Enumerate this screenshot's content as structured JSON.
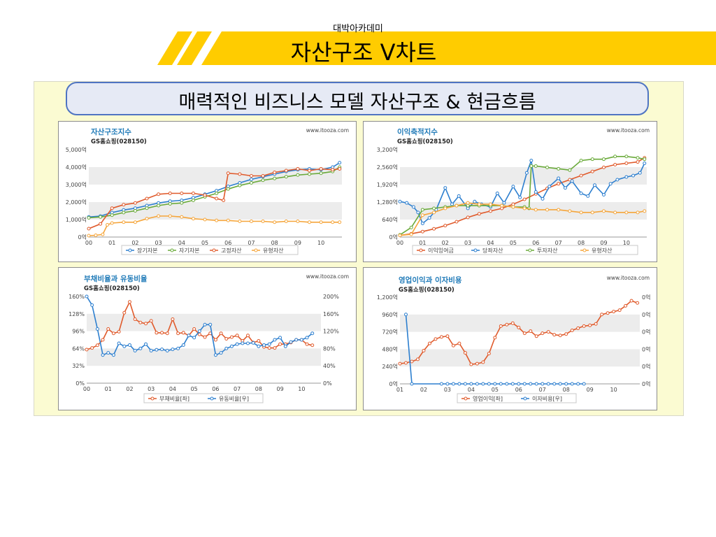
{
  "slide": {
    "subtitle": "대박아카데미",
    "title": "자산구조 V차트",
    "headline": "매력적인 비즈니스 모델 자산구조 & 현금흐름"
  },
  "colors": {
    "banner_yellow": "#ffcc00",
    "frame_bg": "#fbfbd2",
    "headline_border": "#4f74c2",
    "red": "#e05a2b",
    "blue": "#2d7fcf",
    "green": "#6aaa3a",
    "orange": "#f5a53a",
    "title_blue": "#1f7ab8"
  },
  "chart_data": [
    {
      "type": "line",
      "title": "자산구조지수",
      "subtitle": "GS홈쇼핑(028150)",
      "source": "www.itooza.com",
      "x_ticks": [
        "00",
        "01",
        "02",
        "03",
        "04",
        "05",
        "06",
        "07",
        "08",
        "09",
        "10"
      ],
      "x_range": [
        0,
        10.9
      ],
      "ylim": [
        0,
        5000
      ],
      "y_ticks": [
        "0억",
        "1,000억",
        "2,000억",
        "3,000억",
        "4,000억",
        "5,000억"
      ],
      "grid_bands": true,
      "legend_position": "bottom",
      "series": [
        {
          "name": "장기자본",
          "color": "blue",
          "x": [
            0,
            0.5,
            1,
            1.5,
            2,
            2.5,
            3,
            3.5,
            4,
            4.5,
            5,
            5.5,
            6,
            6.5,
            7,
            7.5,
            8,
            8.5,
            9,
            9.5,
            10,
            10.5,
            10.8
          ],
          "values": [
            1150,
            1200,
            1400,
            1550,
            1650,
            1800,
            1950,
            2050,
            2100,
            2250,
            2450,
            2650,
            2900,
            3100,
            3300,
            3450,
            3600,
            3750,
            3850,
            3900,
            3850,
            4000,
            4250
          ]
        },
        {
          "name": "자기자본",
          "color": "green",
          "x": [
            0,
            0.5,
            1,
            1.5,
            2,
            2.5,
            3,
            3.5,
            4,
            4.5,
            5,
            5.5,
            6,
            6.5,
            7,
            7.5,
            8,
            8.5,
            9,
            9.5,
            10,
            10.5,
            10.8
          ],
          "values": [
            1100,
            1150,
            1250,
            1400,
            1500,
            1650,
            1800,
            1900,
            1950,
            2100,
            2300,
            2500,
            2750,
            2950,
            3100,
            3250,
            3350,
            3450,
            3550,
            3600,
            3650,
            3750,
            4000
          ]
        },
        {
          "name": "고정자산",
          "color": "red",
          "x": [
            0,
            0.5,
            1,
            1.5,
            2,
            2.5,
            3,
            3.5,
            4,
            4.5,
            5,
            5.5,
            5.8,
            6,
            6.5,
            7,
            7.5,
            8,
            8.5,
            9,
            9.5,
            10,
            10.5,
            10.8
          ],
          "values": [
            480,
            750,
            1650,
            1850,
            1950,
            2200,
            2450,
            2500,
            2500,
            2500,
            2400,
            2200,
            2100,
            3650,
            3600,
            3500,
            3500,
            3700,
            3800,
            3900,
            3800,
            3900,
            3850,
            3900
          ]
        },
        {
          "name": "유형자산",
          "color": "orange",
          "x": [
            0,
            0.3,
            0.6,
            0.8,
            1,
            1.5,
            2,
            2.5,
            3,
            3.5,
            4,
            4.5,
            5,
            5.5,
            6,
            6.5,
            7,
            7.5,
            8,
            8.5,
            9,
            9.5,
            10,
            10.5,
            10.8
          ],
          "values": [
            80,
            100,
            150,
            700,
            800,
            850,
            850,
            1050,
            1200,
            1200,
            1150,
            1050,
            1000,
            950,
            950,
            900,
            900,
            900,
            850,
            900,
            900,
            850,
            850,
            850,
            850
          ]
        }
      ]
    },
    {
      "type": "line",
      "title": "이익축적지수",
      "subtitle": "GS홈쇼핑(028150)",
      "source": "www.itooza.com",
      "x_ticks": [
        "00",
        "01",
        "02",
        "03",
        "04",
        "05",
        "06",
        "07",
        "08",
        "09",
        "10"
      ],
      "x_range": [
        0,
        10.9
      ],
      "ylim": [
        0,
        3200
      ],
      "y_ticks": [
        "0억",
        "640억",
        "1,280억",
        "1,920억",
        "2,560억",
        "3,200억"
      ],
      "grid_bands": true,
      "legend_position": "bottom",
      "series": [
        {
          "name": "이익잉여금",
          "color": "red",
          "x": [
            0,
            0.5,
            1,
            1.5,
            2,
            2.5,
            3,
            3.5,
            4,
            4.5,
            5,
            5.5,
            6,
            6.5,
            7,
            7.5,
            8,
            8.5,
            9,
            9.5,
            10,
            10.5,
            10.8
          ],
          "values": [
            60,
            120,
            200,
            300,
            420,
            560,
            720,
            850,
            950,
            1050,
            1200,
            1380,
            1580,
            1780,
            1950,
            2100,
            2250,
            2400,
            2550,
            2650,
            2700,
            2750,
            2900
          ]
        },
        {
          "name": "당좌자산",
          "color": "blue",
          "x": [
            0,
            0.3,
            0.6,
            0.8,
            1,
            1.3,
            1.6,
            2,
            2.3,
            2.6,
            3,
            3.3,
            3.6,
            4,
            4.3,
            4.6,
            5,
            5.3,
            5.6,
            5.8,
            6,
            6.3,
            6.6,
            7,
            7.3,
            7.6,
            8,
            8.3,
            8.6,
            9,
            9.3,
            9.6,
            10,
            10.3,
            10.6,
            10.8
          ],
          "values": [
            1300,
            1250,
            1100,
            900,
            500,
            700,
            1000,
            1800,
            1200,
            1500,
            1050,
            1300,
            1200,
            1100,
            1600,
            1250,
            1850,
            1450,
            2350,
            2800,
            1650,
            1400,
            1850,
            2150,
            1800,
            2050,
            1600,
            1500,
            1900,
            1550,
            1950,
            2100,
            2200,
            2250,
            2350,
            2700
          ]
        },
        {
          "name": "투자자산",
          "color": "green",
          "x": [
            0,
            0.5,
            1,
            1.5,
            2,
            2.5,
            3,
            3.5,
            4,
            4.5,
            5,
            5.5,
            5.7,
            5.8,
            6,
            6.5,
            7,
            7.5,
            8,
            8.5,
            9,
            9.5,
            10,
            10.5,
            10.8
          ],
          "values": [
            80,
            350,
            1000,
            1050,
            1100,
            1150,
            1150,
            1150,
            1150,
            1150,
            1100,
            1100,
            1050,
            2600,
            2600,
            2550,
            2500,
            2450,
            2800,
            2850,
            2850,
            2950,
            2950,
            2900,
            2850
          ]
        },
        {
          "name": "유형자산",
          "color": "orange",
          "x": [
            0,
            0.5,
            1,
            1.5,
            2,
            2.5,
            3,
            3.5,
            4,
            4.5,
            5,
            5.5,
            6,
            6.5,
            7,
            7.5,
            8,
            8.5,
            9,
            9.5,
            10,
            10.5,
            10.8
          ],
          "values": [
            60,
            100,
            800,
            900,
            1050,
            1150,
            1250,
            1200,
            1200,
            1150,
            1100,
            1050,
            1000,
            1000,
            1000,
            950,
            900,
            900,
            950,
            900,
            900,
            900,
            950
          ]
        }
      ]
    },
    {
      "type": "line",
      "title": "부채비율과 유동비율",
      "subtitle": "GS홈쇼핑(028150)",
      "source": "www.itooza.com",
      "x_ticks": [
        "00",
        "01",
        "02",
        "03",
        "04",
        "05",
        "06",
        "07",
        "08",
        "09",
        "10"
      ],
      "x_range": [
        0,
        10.9
      ],
      "ylim": [
        0,
        160
      ],
      "y_ticks": [
        "0%",
        "32%",
        "64%",
        "96%",
        "128%",
        "160%"
      ],
      "y2lim": [
        0,
        200
      ],
      "y2_ticks": [
        "0%",
        "40%",
        "80%",
        "120%",
        "160%",
        "200%"
      ],
      "grid_bands": true,
      "legend_position": "bottom",
      "series": [
        {
          "name": "부채비율[좌]",
          "axis": "left",
          "color": "red",
          "x": [
            0,
            0.25,
            0.5,
            0.75,
            1,
            1.25,
            1.5,
            1.75,
            2,
            2.25,
            2.5,
            2.75,
            3,
            3.25,
            3.5,
            3.75,
            4,
            4.25,
            4.5,
            4.75,
            5,
            5.25,
            5.5,
            5.75,
            6,
            6.25,
            6.5,
            6.75,
            7,
            7.25,
            7.5,
            7.75,
            8,
            8.25,
            8.5,
            8.75,
            9,
            9.25,
            9.5,
            9.75,
            10,
            10.25,
            10.5
          ],
          "values": [
            62,
            65,
            70,
            80,
            100,
            92,
            95,
            130,
            150,
            118,
            112,
            110,
            115,
            93,
            93,
            92,
            118,
            92,
            93,
            88,
            100,
            90,
            85,
            92,
            80,
            92,
            82,
            85,
            88,
            78,
            88,
            75,
            78,
            67,
            65,
            65,
            72,
            72,
            75,
            80,
            80,
            72,
            70
          ]
        },
        {
          "name": "유동비율[우]",
          "axis": "right",
          "color": "blue",
          "x": [
            0,
            0.25,
            0.5,
            0.75,
            1,
            1.25,
            1.5,
            1.75,
            2,
            2.25,
            2.5,
            2.75,
            3,
            3.25,
            3.5,
            3.75,
            4,
            4.25,
            4.5,
            4.75,
            5,
            5.25,
            5.5,
            5.75,
            6,
            6.25,
            6.5,
            6.75,
            7,
            7.25,
            7.5,
            7.75,
            8,
            8.25,
            8.5,
            8.75,
            9,
            9.25,
            9.5,
            9.75,
            10,
            10.25,
            10.5
          ],
          "values": [
            200,
            180,
            125,
            65,
            70,
            65,
            92,
            85,
            88,
            75,
            80,
            90,
            75,
            77,
            78,
            75,
            78,
            80,
            88,
            110,
            105,
            120,
            135,
            135,
            65,
            70,
            80,
            85,
            90,
            92,
            92,
            93,
            85,
            88,
            90,
            100,
            105,
            85,
            95,
            100,
            100,
            105,
            115
          ]
        }
      ]
    },
    {
      "type": "line",
      "title": "영업이익과 이자비용",
      "subtitle": "GS홈쇼핑(028150)",
      "source": "www.itooza.com",
      "x_ticks": [
        "01",
        "02",
        "03",
        "04",
        "05",
        "06",
        "07",
        "08",
        "09",
        "10"
      ],
      "x_range": [
        0,
        10.1
      ],
      "ylim": [
        0,
        1200
      ],
      "y_ticks": [
        "0억",
        "240억",
        "480억",
        "720억",
        "960억",
        "1,200억"
      ],
      "y2_ticks": [
        "0억",
        "0억",
        "0억",
        "0억",
        "0억",
        "0억"
      ],
      "grid_bands": true,
      "legend_position": "bottom",
      "series": [
        {
          "name": "영업이익[좌]",
          "axis": "left",
          "color": "red",
          "x": [
            0,
            0.25,
            0.5,
            0.75,
            1,
            1.25,
            1.5,
            1.75,
            2,
            2.25,
            2.5,
            2.75,
            3,
            3.25,
            3.5,
            3.75,
            4,
            4.25,
            4.5,
            4.75,
            5,
            5.25,
            5.5,
            5.75,
            6,
            6.25,
            6.5,
            6.75,
            7,
            7.25,
            7.5,
            7.75,
            8,
            8.25,
            8.5,
            8.75,
            9,
            9.25,
            9.5,
            9.75,
            10
          ],
          "values": [
            280,
            290,
            310,
            340,
            460,
            560,
            620,
            650,
            660,
            530,
            560,
            430,
            270,
            280,
            300,
            420,
            640,
            800,
            820,
            840,
            780,
            700,
            730,
            660,
            700,
            720,
            680,
            670,
            690,
            740,
            770,
            800,
            810,
            830,
            960,
            980,
            1000,
            1020,
            1080,
            1150,
            1120
          ]
        },
        {
          "name": "이자비용[우]",
          "axis": "right",
          "color": "blue",
          "x": [
            0.25,
            0.5,
            1.75,
            2,
            2.25,
            2.5,
            2.75,
            3,
            3.25,
            3.5,
            3.75,
            4,
            4.25,
            4.5,
            4.75,
            5,
            5.25,
            5.5,
            5.75,
            6,
            6.25,
            6.5,
            6.75,
            7,
            7.25,
            7.5,
            7.75
          ],
          "values": [
            800,
            0,
            0,
            0,
            0,
            0,
            0,
            0,
            0,
            0,
            0,
            0,
            0,
            0,
            0,
            0,
            0,
            0,
            0,
            0,
            0,
            0,
            0,
            0,
            0,
            0,
            0
          ]
        }
      ]
    }
  ]
}
